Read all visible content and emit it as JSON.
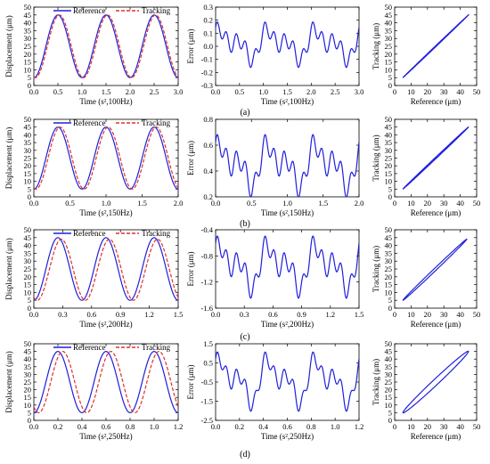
{
  "chart_data": [
    {
      "row_label": "(a)",
      "panels": [
        {
          "type": "line",
          "xlabel": "Time (s²,100Hz)",
          "ylabel": "Displacement (μm)",
          "xlim": [
            0,
            3.0
          ],
          "ylim": [
            0,
            50
          ],
          "xticks": [
            "0.0",
            "0.5",
            "1.0",
            "1.5",
            "2.0",
            "2.5",
            "3.0"
          ],
          "yticks": [
            "0",
            "5",
            "10",
            "15",
            "20",
            "25",
            "30",
            "35",
            "40",
            "45",
            "50"
          ],
          "legend": [
            "Reference",
            "Tracking"
          ],
          "series": [
            {
              "name": "Reference",
              "color": "#1f1fdc",
              "style": "solid",
              "freq": 1.0,
              "phase": 0.0,
              "center": 25,
              "amplitude": 20
            },
            {
              "name": "Tracking",
              "color": "#e0302a",
              "style": "dashed",
              "freq": 1.0,
              "phase": 0.03,
              "center": 25,
              "amplitude": 20
            }
          ]
        },
        {
          "type": "line",
          "xlabel": "Time (s²,100Hz)",
          "ylabel": "Error (μm)",
          "xlim": [
            0,
            3.0
          ],
          "ylim": [
            -0.3,
            0.3
          ],
          "xticks": [
            "0.0",
            "0.5",
            "1.0",
            "1.5",
            "2.0",
            "2.5",
            "3.0"
          ],
          "yticks": [
            "-0.3",
            "-0.2",
            "-0.1",
            "0.0",
            "0.1",
            "0.2",
            "0.3"
          ],
          "series": [
            {
              "name": "Error",
              "color": "#1f1fdc",
              "style": "solid",
              "freq": 1.0,
              "center": 0.02,
              "amplitude": 0.14,
              "ripple": 0.06
            }
          ]
        },
        {
          "type": "line",
          "xlabel": "Reference (μm)",
          "ylabel": "Tracking (μm)",
          "xlim": [
            0,
            50
          ],
          "ylim": [
            0,
            50
          ],
          "xticks": [
            "0",
            "10",
            "20",
            "30",
            "40",
            "50"
          ],
          "yticks": [
            "0",
            "5",
            "10",
            "15",
            "20",
            "25",
            "30",
            "35",
            "40",
            "45",
            "50"
          ],
          "series": [
            {
              "name": "Hysteresis",
              "color": "#1f1fdc",
              "style": "solid",
              "range": [
                5,
                45
              ],
              "loop_width": 0.3
            }
          ]
        }
      ]
    },
    {
      "row_label": "(b)",
      "panels": [
        {
          "type": "line",
          "xlabel": "Time (s²,150Hz)",
          "ylabel": "Displacement (μm)",
          "xlim": [
            0,
            2.0
          ],
          "ylim": [
            0,
            50
          ],
          "xticks": [
            "0.0",
            "0.5",
            "1.0",
            "1.5",
            "2.0"
          ],
          "yticks": [
            "0",
            "5",
            "10",
            "15",
            "20",
            "25",
            "30",
            "35",
            "40",
            "45",
            "50"
          ],
          "legend": [
            "Reference",
            "Tracking"
          ],
          "series": [
            {
              "name": "Reference",
              "color": "#1f1fdc",
              "style": "solid",
              "freq": 1.5,
              "phase": 0.0,
              "center": 25,
              "amplitude": 20
            },
            {
              "name": "Tracking",
              "color": "#e0302a",
              "style": "dashed",
              "freq": 1.5,
              "phase": 0.03,
              "center": 25,
              "amplitude": 20
            }
          ]
        },
        {
          "type": "line",
          "xlabel": "Time (s²,150Hz)",
          "ylabel": "Error (μm)",
          "xlim": [
            0,
            2.0
          ],
          "ylim": [
            0.2,
            0.8
          ],
          "xticks": [
            "0.0",
            "0.5",
            "1.0",
            "1.5",
            "2.0"
          ],
          "yticks": [
            "0.2",
            "0.4",
            "0.6",
            "0.8"
          ],
          "series": [
            {
              "name": "Error",
              "color": "#1f1fdc",
              "style": "solid",
              "freq": 1.5,
              "center": 0.45,
              "amplitude": 0.2,
              "ripple": 0.08
            }
          ]
        },
        {
          "type": "line",
          "xlabel": "Reference (μm)",
          "ylabel": "Tracking (μm)",
          "xlim": [
            0,
            50
          ],
          "ylim": [
            0,
            50
          ],
          "xticks": [
            "0",
            "10",
            "20",
            "30",
            "40",
            "50"
          ],
          "yticks": [
            "0",
            "5",
            "10",
            "15",
            "20",
            "25",
            "30",
            "35",
            "40",
            "45",
            "50"
          ],
          "series": [
            {
              "name": "Hysteresis",
              "color": "#1f1fdc",
              "style": "solid",
              "range": [
                5,
                45
              ],
              "loop_width": 0.5
            }
          ]
        }
      ]
    },
    {
      "row_label": "(c)",
      "panels": [
        {
          "type": "line",
          "xlabel": "Time (s²,200Hz)",
          "ylabel": "Displacement (μm)",
          "xlim": [
            0,
            1.5
          ],
          "ylim": [
            0,
            50
          ],
          "xticks": [
            "0.0",
            "0.3",
            "0.6",
            "0.9",
            "1.2",
            "1.5"
          ],
          "yticks": [
            "0",
            "5",
            "10",
            "15",
            "20",
            "25",
            "30",
            "35",
            "40",
            "45",
            "50"
          ],
          "legend": [
            "Reference",
            "Tracking"
          ],
          "series": [
            {
              "name": "Reference",
              "color": "#1f1fdc",
              "style": "solid",
              "freq": 2.0,
              "phase": 0.0,
              "center": 25,
              "amplitude": 20
            },
            {
              "name": "Tracking",
              "color": "#e0302a",
              "style": "dashed",
              "freq": 2.0,
              "phase": 0.035,
              "center": 24.5,
              "amplitude": 19.5
            }
          ]
        },
        {
          "type": "line",
          "xlabel": "Time (s²,200Hz)",
          "ylabel": "Error (μm)",
          "xlim": [
            0,
            1.5
          ],
          "ylim": [
            -1.6,
            -0.4
          ],
          "xticks": [
            "0.0",
            "0.3",
            "0.6",
            "0.9",
            "1.2",
            "1.5"
          ],
          "yticks": [
            "-1.6",
            "-1.2",
            "-0.8",
            "-0.4"
          ],
          "series": [
            {
              "name": "Error",
              "color": "#1f1fdc",
              "style": "solid",
              "freq": 2.0,
              "center": -0.95,
              "amplitude": 0.4,
              "ripple": 0.15
            }
          ]
        },
        {
          "type": "line",
          "xlabel": "Reference (μm)",
          "ylabel": "Tracking (μm)",
          "xlim": [
            0,
            50
          ],
          "ylim": [
            0,
            50
          ],
          "xticks": [
            "0",
            "10",
            "20",
            "30",
            "40",
            "50"
          ],
          "yticks": [
            "0",
            "5",
            "10",
            "15",
            "20",
            "25",
            "30",
            "35",
            "40",
            "45",
            "50"
          ],
          "series": [
            {
              "name": "Hysteresis",
              "color": "#1f1fdc",
              "style": "solid",
              "range": [
                5,
                44
              ],
              "loop_width": 1.0
            }
          ]
        }
      ]
    },
    {
      "row_label": "(d)",
      "panels": [
        {
          "type": "line",
          "xlabel": "Time (s²,250Hz)",
          "ylabel": "Displacement (μm)",
          "xlim": [
            0,
            1.2
          ],
          "ylim": [
            0,
            50
          ],
          "xticks": [
            "0.0",
            "0.2",
            "0.4",
            "0.6",
            "0.8",
            "1.0",
            "1.2"
          ],
          "yticks": [
            "0",
            "5",
            "10",
            "15",
            "20",
            "25",
            "30",
            "35",
            "40",
            "45",
            "50"
          ],
          "legend": [
            "Reference",
            "Tracking"
          ],
          "series": [
            {
              "name": "Reference",
              "color": "#1f1fdc",
              "style": "solid",
              "freq": 2.5,
              "phase": 0.0,
              "center": 25,
              "amplitude": 20
            },
            {
              "name": "Tracking",
              "color": "#e0302a",
              "style": "dashed",
              "freq": 2.5,
              "phase": 0.04,
              "center": 25,
              "amplitude": 20
            }
          ]
        },
        {
          "type": "line",
          "xlabel": "Time (s²,250Hz)",
          "ylabel": "Error (μm)",
          "xlim": [
            0,
            1.2
          ],
          "ylim": [
            -2.5,
            1.5
          ],
          "xticks": [
            "0.0",
            "0.2",
            "0.4",
            "0.6",
            "0.8",
            "1.0",
            "1.2"
          ],
          "yticks": [
            "-2.5",
            "-1.5",
            "-0.5",
            "0.5",
            "1.5"
          ],
          "series": [
            {
              "name": "Error",
              "color": "#1f1fdc",
              "style": "solid",
              "freq": 2.5,
              "center": -0.4,
              "amplitude": 1.4,
              "ripple": 0.4
            }
          ]
        },
        {
          "type": "line",
          "xlabel": "Reference (μm)",
          "ylabel": "Tracking (μm)",
          "xlim": [
            0,
            50
          ],
          "ylim": [
            0,
            50
          ],
          "xticks": [
            "0",
            "10",
            "20",
            "30",
            "40",
            "50"
          ],
          "yticks": [
            "0",
            "5",
            "10",
            "15",
            "20",
            "25",
            "30",
            "35",
            "40",
            "45",
            "50"
          ],
          "series": [
            {
              "name": "Hysteresis",
              "color": "#1f1fdc",
              "style": "solid",
              "range": [
                5,
                45
              ],
              "loop_width": 2.5
            }
          ]
        }
      ]
    }
  ]
}
